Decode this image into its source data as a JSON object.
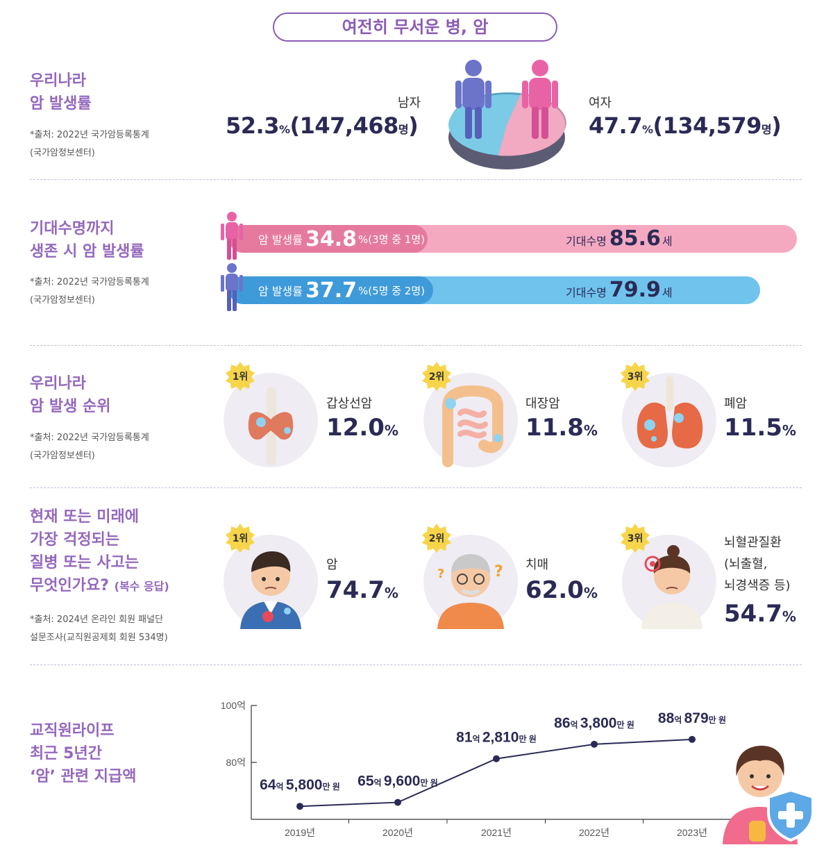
{
  "header": {
    "title": "여전히 무서운 병, 암"
  },
  "sections": {
    "incidence": {
      "title": "우리나라\n암 발생률",
      "source": "*출처: 2022년 국가암등록통계\n(국가암정보센터)",
      "male": {
        "label": "남자",
        "pct": "52.3",
        "pct_unit": "%",
        "count": "(147,468",
        "count_unit": "명",
        "close": ")"
      },
      "female": {
        "label": "여자",
        "pct": "47.7",
        "pct_unit": "%",
        "count": "(134,579",
        "count_unit": "명",
        "close": ")"
      },
      "colors": {
        "male": "#7ccbe6",
        "female": "#f2a9c2"
      }
    },
    "life_expectancy": {
      "title": "기대수명까지\n생존 시 암 발생률",
      "source": "*출처: 2022년 국가암등록통계\n(국가암정보센터)",
      "female": {
        "label": "암 발생률",
        "value": "34.8",
        "sub": "%(3명 중 1명)",
        "life_label": "기대수명",
        "life_value": "85.6",
        "life_unit": "세"
      },
      "male": {
        "label": "암 발생률",
        "value": "37.7",
        "sub": "%(5명 중 2명)",
        "life_label": "기대수명",
        "life_value": "79.9",
        "life_unit": "세"
      }
    },
    "cancer_rank": {
      "title": "우리나라\n암 발생 순위",
      "source": "*출처: 2022년 국가암등록통계\n(국가암정보센터)",
      "items": [
        {
          "rank": "1위",
          "name": "갑상선암",
          "value": "12.0",
          "unit": "%",
          "icon": "thyroid-icon"
        },
        {
          "rank": "2위",
          "name": "대장암",
          "value": "11.8",
          "unit": "%",
          "icon": "colon-icon"
        },
        {
          "rank": "3위",
          "name": "폐암",
          "value": "11.5",
          "unit": "%",
          "icon": "lung-icon"
        }
      ]
    },
    "worries": {
      "title": "현재 또는 미래에\n가장 걱정되는\n질병 또는 사고는\n무엇인가요?",
      "title_note": "(복수 응답)",
      "source": "*출처: 2024년 온라인 회원 패널단\n설문조사(교직원공제회 회원 534명)",
      "items": [
        {
          "rank": "1위",
          "name": "암",
          "value": "74.7",
          "unit": "%",
          "icon": "sick-man-icon"
        },
        {
          "rank": "2위",
          "name": "치매",
          "value": "62.0",
          "unit": "%",
          "icon": "confused-elder-icon"
        },
        {
          "rank": "3위",
          "name": "뇌혈관질환\n(뇌출혈,\n뇌경색증 등)",
          "value": "54.7",
          "unit": "%",
          "icon": "headache-woman-icon"
        }
      ]
    },
    "payout": {
      "title": "교직원라이프\n최근 5년간\n‘암’ 관련 지급액"
    }
  },
  "chart_data": {
    "type": "line",
    "x": [
      "2019년",
      "2020년",
      "2021년",
      "2022년",
      "2023년"
    ],
    "series": [
      {
        "values": [
          64.58,
          65.96,
          81.281,
          86.38,
          88.0879
        ]
      }
    ],
    "point_labels": [
      {
        "eok": "64",
        "man": "5,800"
      },
      {
        "eok": "65",
        "man": "9,600"
      },
      {
        "eok": "81",
        "man": "2,810"
      },
      {
        "eok": "86",
        "man": "3,800"
      },
      {
        "eok": "88",
        "man": "879"
      }
    ],
    "label_units": {
      "eok": "억",
      "man": "만 원"
    },
    "y_ticks": [
      {
        "value": 100,
        "label": "100억"
      },
      {
        "value": 80,
        "label": "80억"
      }
    ],
    "ylim": [
      60,
      100
    ],
    "grid": false,
    "line_color": "#2b2a56"
  }
}
